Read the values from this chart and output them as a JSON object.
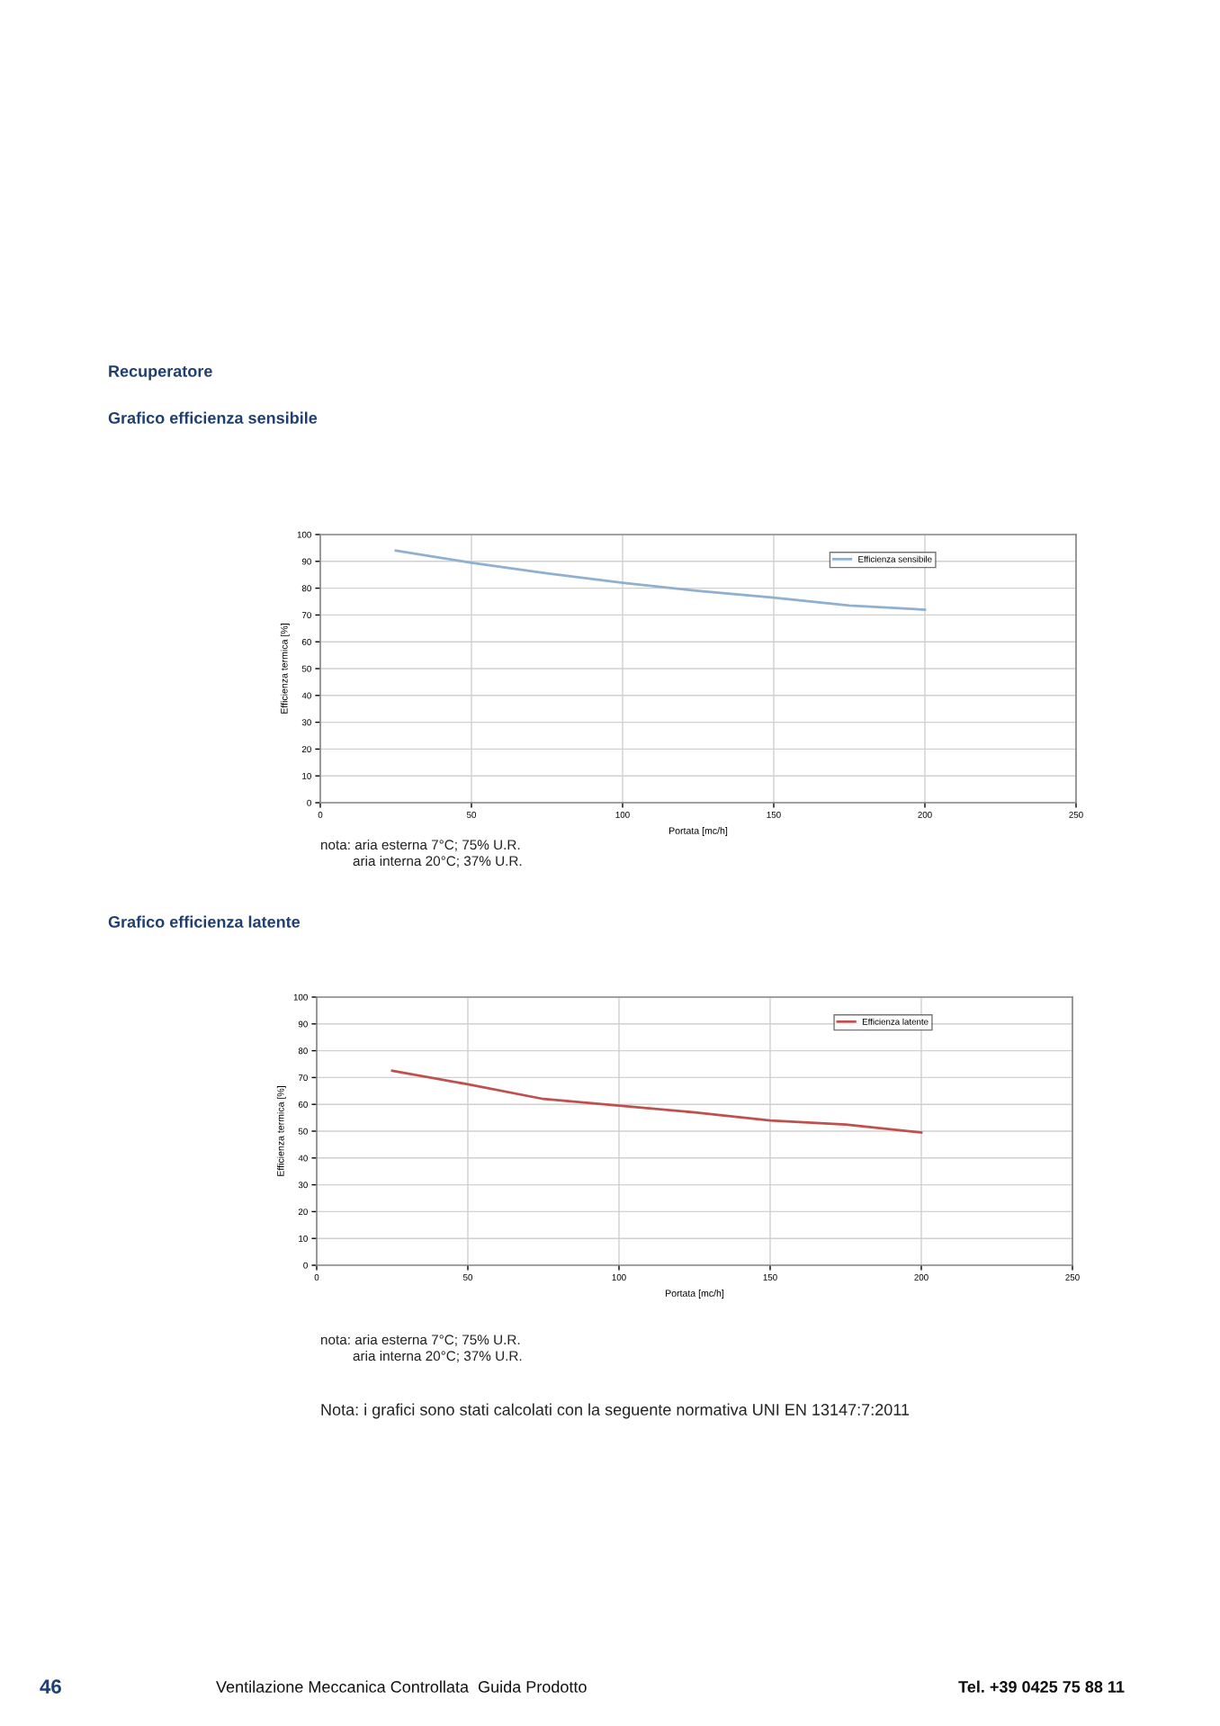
{
  "chart_data": [
    {
      "type": "line",
      "title": "Grafico efficienza sensibile",
      "xlabel": "Portata [mc/h]",
      "ylabel": "Efficienza termica [%]",
      "annotations": [
        "Recuperatore",
        "nota: aria esterna 7°C; 75% U.R.",
        "aria interna 20°C; 37% U.R."
      ],
      "x": [
        25,
        50,
        75,
        100,
        125,
        150,
        175,
        200
      ],
      "series": [
        {
          "name": "Efficienza sensibile",
          "color": "#8fb0d0",
          "values": [
            94,
            89.5,
            85.5,
            82,
            79,
            76.5,
            73.5,
            72
          ]
        }
      ],
      "xlim": [
        0,
        250
      ],
      "xticks": [
        0,
        50,
        100,
        150,
        200,
        250
      ],
      "ylim": [
        0,
        100
      ],
      "yticks": [
        0,
        10,
        20,
        30,
        40,
        50,
        60,
        70,
        80,
        90,
        100
      ],
      "grid": true,
      "legend": "top right",
      "marker": "none",
      "line_style": "solid"
    },
    {
      "type": "line",
      "title": "Grafico efficienza latente",
      "xlabel": "Portata [mc/h]",
      "ylabel": "Efficienza termica [%]",
      "annotations": [
        "nota: aria esterna 7°C; 75% U.R.",
        "aria interna 20°C; 37% U.R.",
        "Nota: i grafici sono stati calcolati con la seguente normativa UNI EN 13147:7:2011",
        "46",
        "Ventilazione Meccanica Controllata  Guida Prodotto",
        "Tel. +39 0425 75 88 11"
      ],
      "x": [
        25,
        50,
        75,
        100,
        125,
        150,
        175,
        200
      ],
      "series": [
        {
          "name": "Efficienza latente",
          "color": "#c0504d",
          "values": [
            72.5,
            67.5,
            62,
            59.5,
            57,
            54,
            52.5,
            49.5
          ]
        }
      ],
      "xlim": [
        0,
        250
      ],
      "xticks": [
        0,
        50,
        100,
        150,
        200,
        250
      ],
      "ylim": [
        0,
        100
      ],
      "yticks": [
        0,
        10,
        20,
        30,
        40,
        50,
        60,
        70,
        80,
        90,
        100
      ],
      "grid": true,
      "legend": "top right",
      "marker": "none",
      "line_style": "solid"
    }
  ]
}
